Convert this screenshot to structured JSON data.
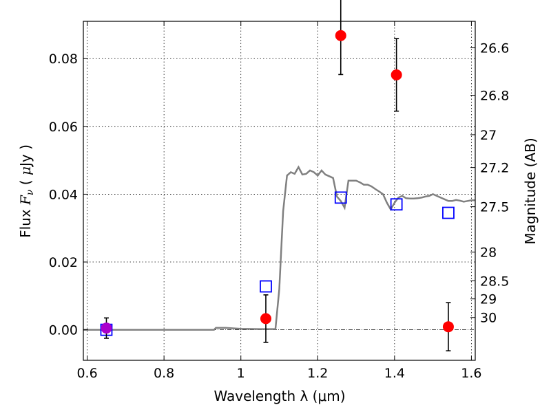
{
  "chart_data": {
    "type": "scatter",
    "xlabel": "Wavelength  λ (μm)",
    "ylabel_parts": [
      "Flux  ",
      "F",
      "ν",
      "  ( ",
      "μ",
      "Jy )"
    ],
    "ylabel_right": "Magnitude (AB)",
    "xlim": [
      0.59,
      1.61
    ],
    "ylim": [
      -0.009,
      0.091
    ],
    "x_ticks": [
      0.6,
      0.8,
      1.0,
      1.2,
      1.4,
      1.6
    ],
    "x_tick_labels": [
      "0.6",
      "0.8",
      "1",
      "1.2",
      "1.4",
      "1.6"
    ],
    "y_ticks": [
      0.0,
      0.02,
      0.04,
      0.06,
      0.08
    ],
    "y_tick_labels": [
      "0.00",
      "0.02",
      "0.04",
      "0.06",
      "0.08"
    ],
    "right_ticks": [
      {
        "label": "26.6",
        "value": 26.6
      },
      {
        "label": "26.8",
        "value": 26.8
      },
      {
        "label": "27",
        "value": 27.0
      },
      {
        "label": "27.2",
        "value": 27.2
      },
      {
        "label": "27.5",
        "value": 27.5
      },
      {
        "label": "28",
        "value": 28.0
      },
      {
        "label": "28.5",
        "value": 28.5
      },
      {
        "label": "29",
        "value": 29.0
      },
      {
        "label": "30",
        "value": 30.0
      }
    ],
    "grid": true,
    "zero_line": true,
    "colors": {
      "observed": "#ff0000",
      "model_points": "#0000ff",
      "model_curve": "#808080",
      "overlap": "#aa00cc"
    },
    "series": [
      {
        "kind": "curve",
        "x": [
          0.59,
          0.7,
          0.8,
          0.93,
          0.935,
          0.96,
          1.0,
          1.05,
          1.09,
          1.1,
          1.11,
          1.12,
          1.13,
          1.14,
          1.15,
          1.16,
          1.17,
          1.18,
          1.19,
          1.2,
          1.21,
          1.22,
          1.23,
          1.24,
          1.25,
          1.26,
          1.27,
          1.28,
          1.29,
          1.3,
          1.31,
          1.32,
          1.33,
          1.34,
          1.35,
          1.36,
          1.37,
          1.38,
          1.39,
          1.4,
          1.41,
          1.42,
          1.43,
          1.44,
          1.45,
          1.46,
          1.47,
          1.48,
          1.49,
          1.5,
          1.51,
          1.52,
          1.53,
          1.54,
          1.55,
          1.56,
          1.57,
          1.58,
          1.59,
          1.6,
          1.61
        ],
        "y": [
          0.0,
          0.0,
          0.0,
          0.0,
          0.0006,
          0.0006,
          0.0003,
          0.0002,
          0.0002,
          0.012,
          0.035,
          0.0455,
          0.0465,
          0.046,
          0.048,
          0.0458,
          0.046,
          0.047,
          0.0465,
          0.0455,
          0.047,
          0.0458,
          0.0453,
          0.0448,
          0.0393,
          0.038,
          0.036,
          0.044,
          0.044,
          0.044,
          0.0435,
          0.0428,
          0.0428,
          0.0423,
          0.0415,
          0.0408,
          0.04,
          0.0375,
          0.0355,
          0.0375,
          0.039,
          0.0395,
          0.0388,
          0.0387,
          0.0387,
          0.0388,
          0.039,
          0.0393,
          0.0395,
          0.04,
          0.0395,
          0.039,
          0.0385,
          0.038,
          0.038,
          0.0383,
          0.0381,
          0.0378,
          0.038,
          0.0382,
          0.0382
        ]
      },
      {
        "kind": "model_points",
        "x": [
          0.65,
          1.065,
          1.26,
          1.405,
          1.54
        ],
        "y": [
          0.0,
          0.0128,
          0.039,
          0.037,
          0.0345
        ]
      },
      {
        "kind": "observed",
        "x": [
          0.65,
          1.065,
          1.26,
          1.405,
          1.54
        ],
        "y": [
          0.0005,
          0.0033,
          0.0868,
          0.0752,
          0.0009
        ],
        "err_low": [
          0.003,
          0.007,
          0.0115,
          0.0107,
          0.0071
        ],
        "err_high": [
          0.003,
          0.007,
          0.0115,
          0.0107,
          0.0071
        ]
      }
    ]
  }
}
